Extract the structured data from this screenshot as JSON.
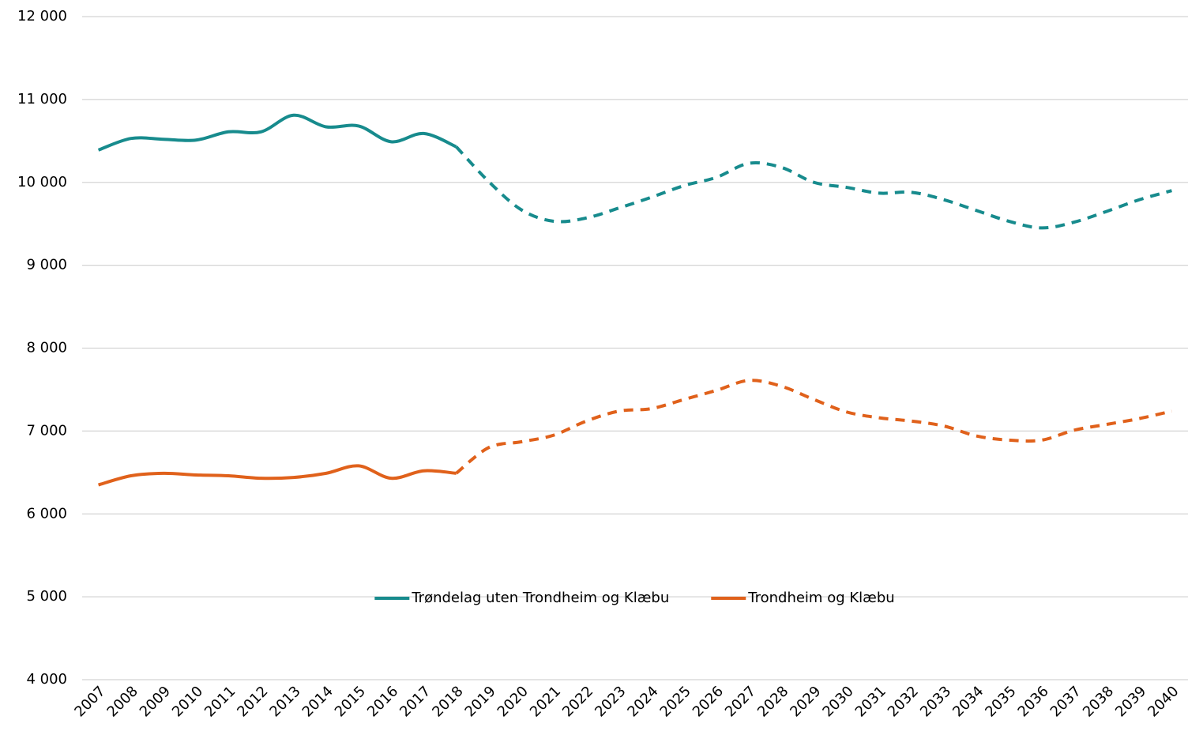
{
  "chart_data": {
    "type": "line",
    "categories": [
      "2007",
      "2008",
      "2009",
      "2010",
      "2011",
      "2012",
      "2013",
      "2014",
      "2015",
      "2016",
      "2017",
      "2018",
      "2019",
      "2020",
      "2021",
      "2022",
      "2023",
      "2024",
      "2025",
      "2026",
      "2027",
      "2028",
      "2029",
      "2030",
      "2031",
      "2032",
      "2033",
      "2034",
      "2035",
      "2036",
      "2037",
      "2038",
      "2039",
      "2040"
    ],
    "dashed_from": "2018",
    "series": [
      {
        "name": "Trøndelag uten Trondheim og Klæbu",
        "color": "#178b8d",
        "values": [
          10390,
          10530,
          10520,
          10510,
          10610,
          10610,
          10810,
          10670,
          10680,
          10490,
          10590,
          10430,
          10010,
          9670,
          9530,
          9570,
          9690,
          9820,
          9960,
          10060,
          10230,
          10180,
          10000,
          9940,
          9870,
          9880,
          9790,
          9660,
          9530,
          9450,
          9520,
          9650,
          9790,
          9900
        ]
      },
      {
        "name": "Trondheim og Klæbu",
        "color": "#e0611b",
        "values": [
          6350,
          6460,
          6490,
          6470,
          6460,
          6430,
          6440,
          6490,
          6580,
          6430,
          6520,
          6490,
          6800,
          6870,
          6950,
          7120,
          7240,
          7270,
          7380,
          7490,
          7610,
          7540,
          7380,
          7230,
          7160,
          7120,
          7060,
          6940,
          6890,
          6890,
          7010,
          7080,
          7150,
          7240
        ]
      }
    ],
    "ylim": [
      4000,
      12000
    ],
    "yticks": [
      {
        "value": 4000,
        "label": "4 000"
      },
      {
        "value": 5000,
        "label": "5 000"
      },
      {
        "value": 6000,
        "label": "6 000"
      },
      {
        "value": 7000,
        "label": "7 000"
      },
      {
        "value": 8000,
        "label": "8 000"
      },
      {
        "value": 9000,
        "label": "9 000"
      },
      {
        "value": 10000,
        "label": "10 000"
      },
      {
        "value": 11000,
        "label": "11 000"
      },
      {
        "value": 12000,
        "label": "12 000"
      }
    ],
    "grid": true,
    "legend": "center"
  }
}
